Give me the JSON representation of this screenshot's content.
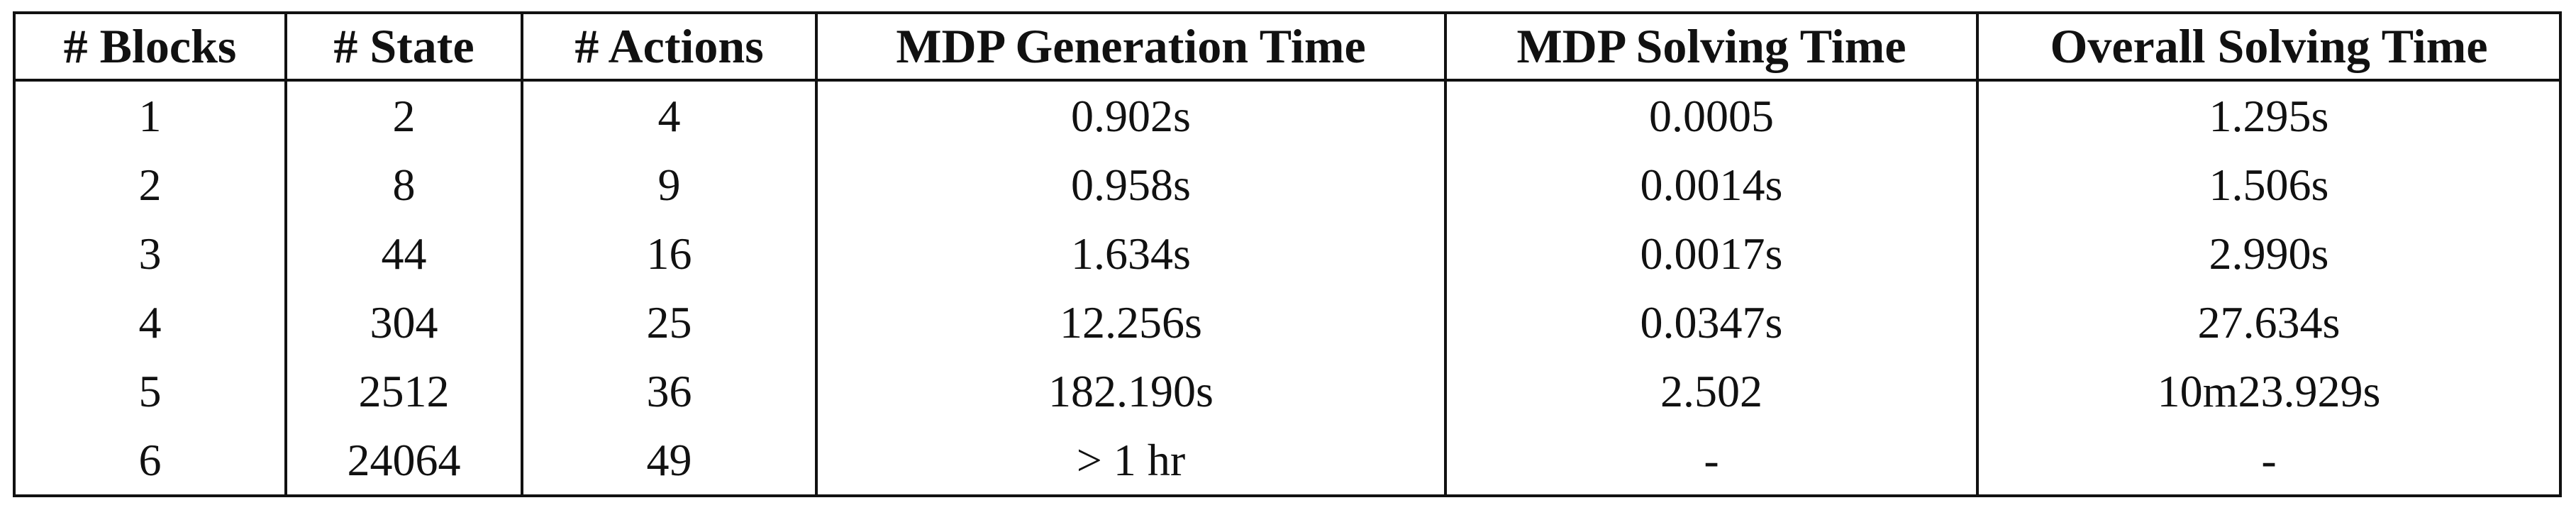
{
  "table": {
    "header": [
      "# Blocks",
      "# State",
      "# Actions",
      "MDP Generation Time",
      "MDP Solving Time",
      "Overall Solving Time"
    ],
    "rows": [
      [
        "1",
        "2",
        "4",
        "0.902s",
        "0.0005",
        "1.295s"
      ],
      [
        "2",
        "8",
        "9",
        "0.958s",
        "0.0014s",
        "1.506s"
      ],
      [
        "3",
        "44",
        "16",
        "1.634s",
        "0.0017s",
        "2.990s"
      ],
      [
        "4",
        "304",
        "25",
        "12.256s",
        "0.0347s",
        "27.634s"
      ],
      [
        "5",
        "2512",
        "36",
        "182.190s",
        "2.502",
        "10m23.929s"
      ],
      [
        "6",
        "24064",
        "49",
        "> 1 hr",
        "-",
        "-"
      ]
    ]
  }
}
